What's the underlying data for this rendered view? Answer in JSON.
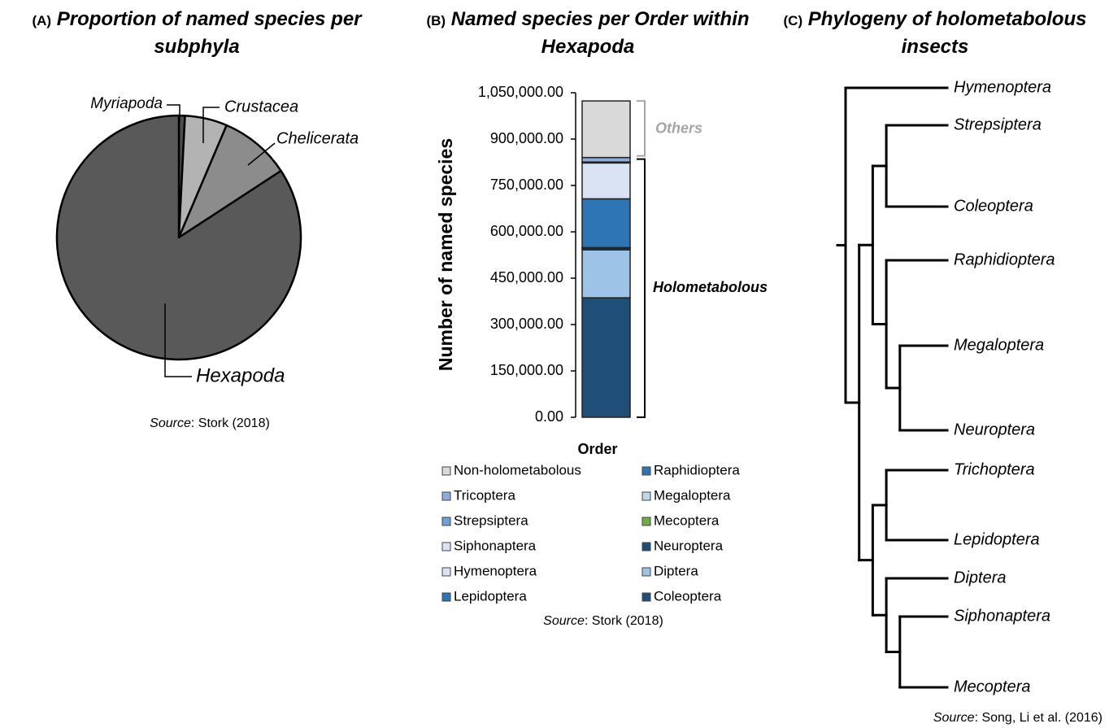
{
  "chart_data": [
    {
      "type": "pie",
      "panel": "(A)",
      "title": "Proportion of named species per subphyla",
      "categories": [
        "Myriapoda",
        "Crustacea",
        "Chelicerata",
        "Hexapoda"
      ],
      "values": [
        0.8,
        5.6,
        9.4,
        84.2
      ],
      "colors": [
        "#4d4d4d",
        "#b3b3b3",
        "#8c8c8c",
        "#595959"
      ],
      "source_label": "Source",
      "source_text": ": Stork (2018)"
    },
    {
      "type": "stacked_bar",
      "panel": "(B)",
      "title": "Named species per Order within Hexapoda",
      "ylabel": "Number of named species",
      "xlabel": "Order",
      "ylim": [
        0,
        1050000
      ],
      "yticks": [
        {
          "value": 0,
          "label": "0.00"
        },
        {
          "value": 150000,
          "label": "150,000.00"
        },
        {
          "value": 300000,
          "label": "300,000.00"
        },
        {
          "value": 450000,
          "label": "450,000.00"
        },
        {
          "value": 600000,
          "label": "600,000.00"
        },
        {
          "value": 750000,
          "label": "750,000.00"
        },
        {
          "value": 900000,
          "label": "900,000.00"
        },
        {
          "value": 1050000,
          "label": "1,050,000.00"
        }
      ],
      "series": [
        {
          "name": "Non-holometabolous",
          "color": "#d9d9d9",
          "values": [
            183000
          ]
        },
        {
          "name": "Tricoptera",
          "color": "#8faadc",
          "values": [
            14500
          ]
        },
        {
          "name": "Strepsiptera",
          "color": "#6fa0d8",
          "values": [
            600
          ]
        },
        {
          "name": "Siphonaptera",
          "color": "#dae3f3",
          "values": [
            2500
          ]
        },
        {
          "name": "Hymenoptera",
          "color": "#dae3f3",
          "values": [
            116000
          ]
        },
        {
          "name": "Lepidoptera",
          "color": "#2e75b6",
          "values": [
            158000
          ]
        },
        {
          "name": "Raphidioptera",
          "color": "#2e75b6",
          "values": [
            250
          ]
        },
        {
          "name": "Megaloptera",
          "color": "#bdd7ee",
          "values": [
            380
          ]
        },
        {
          "name": "Mecoptera",
          "color": "#70ad47",
          "values": [
            750
          ]
        },
        {
          "name": "Neuroptera",
          "color": "#1f4e79",
          "values": [
            5900
          ]
        },
        {
          "name": "Diptera",
          "color": "#9dc3e6",
          "values": [
            155000
          ]
        },
        {
          "name": "Coleoptera",
          "color": "#1f4e79",
          "values": [
            386500
          ]
        }
      ],
      "annotations": {
        "others": "Others",
        "holometabolous": "Holometabolous"
      },
      "source_label": "Source",
      "source_text": ": Stork (2018)"
    },
    {
      "type": "tree",
      "panel": "(C)",
      "title": "Phylogeny of holometabolous insects",
      "tree": [
        "Hymenoptera",
        [
          [
            [
              "Strepsiptera",
              "Coleoptera"
            ],
            [
              "Raphidioptera",
              [
                "Megaloptera",
                "Neuroptera"
              ]
            ]
          ],
          [
            [
              "Trichoptera",
              "Lepidoptera"
            ],
            [
              "Diptera",
              [
                "Siphonaptera",
                "Mecoptera"
              ]
            ]
          ]
        ]
      ],
      "source_label": "Source",
      "source_text": ": Song, Li et al. (2016)"
    }
  ]
}
